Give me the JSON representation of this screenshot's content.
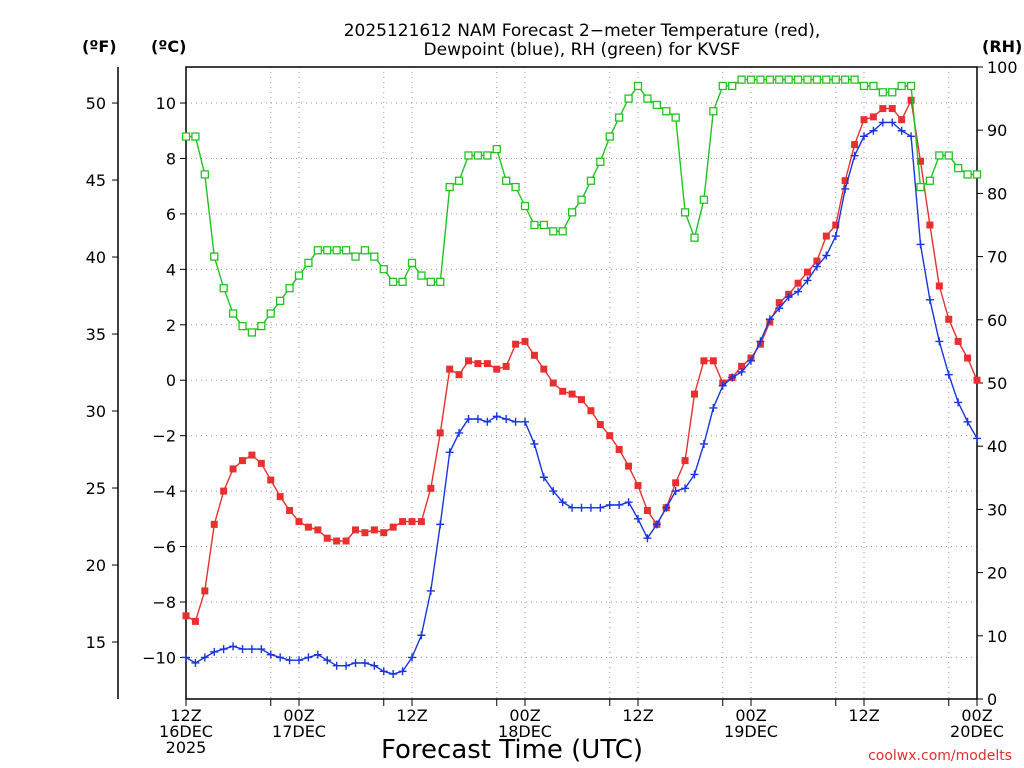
{
  "chart_data": {
    "type": "line",
    "title_lines": [
      "2025121612 NAM Forecast 2−meter Temperature (red),",
      "Dewpoint (blue), RH (green) for KVSF"
    ],
    "left_units_f": "(ºF)",
    "left_units_c": "(ºC)",
    "right_units": "(RH)",
    "xlabel": "Forecast Time (UTC)",
    "credit": "coolwx.com/modelts",
    "x_range_hours": [
      0,
      84
    ],
    "celsius_range": [
      -11.5,
      11.3
    ],
    "fahrenheit_ticks": [
      15,
      20,
      25,
      30,
      35,
      40,
      45,
      50
    ],
    "celsius_ticks": [
      -10,
      -8,
      -6,
      -4,
      -2,
      0,
      2,
      4,
      6,
      8,
      10
    ],
    "celsius_tick_labels": [
      "−10",
      "−8",
      "−6",
      "−4",
      "−2",
      "0",
      "2",
      "4",
      "6",
      "8",
      "10"
    ],
    "rh_range": [
      0,
      100
    ],
    "rh_ticks": [
      0,
      10,
      20,
      30,
      40,
      50,
      60,
      70,
      80,
      90,
      100
    ],
    "x_ticks": [
      {
        "hour": 0,
        "lines": [
          "12Z",
          "16DEC",
          "2025"
        ]
      },
      {
        "hour": 9,
        "lines": [
          ""
        ]
      },
      {
        "hour": 12,
        "lines": [
          "00Z",
          "17DEC"
        ]
      },
      {
        "hour": 21,
        "lines": [
          ""
        ]
      },
      {
        "hour": 24,
        "lines": [
          "12Z"
        ]
      },
      {
        "hour": 33,
        "lines": [
          ""
        ]
      },
      {
        "hour": 36,
        "lines": [
          "00Z",
          "18DEC"
        ]
      },
      {
        "hour": 45,
        "lines": [
          ""
        ]
      },
      {
        "hour": 48,
        "lines": [
          "12Z"
        ]
      },
      {
        "hour": 57,
        "lines": [
          ""
        ]
      },
      {
        "hour": 60,
        "lines": [
          "00Z",
          "19DEC"
        ]
      },
      {
        "hour": 69,
        "lines": [
          ""
        ]
      },
      {
        "hour": 72,
        "lines": [
          "12Z"
        ]
      },
      {
        "hour": 81,
        "lines": [
          ""
        ]
      },
      {
        "hour": 84,
        "lines": [
          "00Z",
          "20DEC"
        ]
      }
    ],
    "series": [
      {
        "name": "2-meter Temperature",
        "unit": "°C",
        "color": "#e83030",
        "marker": "filled-square",
        "points": [
          [
            0,
            -8.5
          ],
          [
            1,
            -8.7
          ],
          [
            2,
            -7.6
          ],
          [
            3,
            -5.2
          ],
          [
            4,
            -4.0
          ],
          [
            5,
            -3.2
          ],
          [
            6,
            -2.9
          ],
          [
            7,
            -2.7
          ],
          [
            8,
            -3.0
          ],
          [
            9,
            -3.6
          ],
          [
            10,
            -4.2
          ],
          [
            11,
            -4.7
          ],
          [
            12,
            -5.1
          ],
          [
            13,
            -5.3
          ],
          [
            14,
            -5.4
          ],
          [
            15,
            -5.7
          ],
          [
            16,
            -5.8
          ],
          [
            17,
            -5.8
          ],
          [
            18,
            -5.4
          ],
          [
            19,
            -5.5
          ],
          [
            20,
            -5.4
          ],
          [
            21,
            -5.5
          ],
          [
            22,
            -5.3
          ],
          [
            23,
            -5.1
          ],
          [
            24,
            -5.1
          ],
          [
            25,
            -5.1
          ],
          [
            26,
            -3.9
          ],
          [
            27,
            -1.9
          ],
          [
            28,
            0.4
          ],
          [
            29,
            0.2
          ],
          [
            30,
            0.7
          ],
          [
            31,
            0.6
          ],
          [
            32,
            0.6
          ],
          [
            33,
            0.4
          ],
          [
            34,
            0.5
          ],
          [
            35,
            1.3
          ],
          [
            36,
            1.4
          ],
          [
            37,
            0.9
          ],
          [
            38,
            0.4
          ],
          [
            39,
            -0.1
          ],
          [
            40,
            -0.4
          ],
          [
            41,
            -0.5
          ],
          [
            42,
            -0.7
          ],
          [
            43,
            -1.1
          ],
          [
            44,
            -1.6
          ],
          [
            45,
            -2.0
          ],
          [
            46,
            -2.5
          ],
          [
            47,
            -3.1
          ],
          [
            48,
            -3.8
          ],
          [
            49,
            -4.7
          ],
          [
            50,
            -5.2
          ],
          [
            51,
            -4.6
          ],
          [
            52,
            -3.7
          ],
          [
            53,
            -2.9
          ],
          [
            54,
            -0.5
          ],
          [
            55,
            0.7
          ],
          [
            56,
            0.7
          ],
          [
            57,
            -0.1
          ],
          [
            58,
            0.1
          ],
          [
            59,
            0.5
          ],
          [
            60,
            0.8
          ],
          [
            61,
            1.3
          ],
          [
            62,
            2.1
          ],
          [
            63,
            2.8
          ],
          [
            64,
            3.1
          ],
          [
            65,
            3.5
          ],
          [
            66,
            3.9
          ],
          [
            67,
            4.3
          ],
          [
            68,
            5.2
          ],
          [
            69,
            5.6
          ],
          [
            70,
            7.2
          ],
          [
            71,
            8.5
          ],
          [
            72,
            9.4
          ],
          [
            73,
            9.5
          ],
          [
            74,
            9.8
          ],
          [
            75,
            9.8
          ],
          [
            76,
            9.4
          ],
          [
            77,
            10.1
          ],
          [
            78,
            7.9
          ],
          [
            79,
            5.6
          ],
          [
            80,
            3.4
          ],
          [
            81,
            2.2
          ],
          [
            82,
            1.4
          ],
          [
            83,
            0.8
          ],
          [
            84,
            0.0
          ]
        ]
      },
      {
        "name": "Dewpoint",
        "unit": "°C",
        "color": "#1a35e0",
        "marker": "plus",
        "points": [
          [
            0,
            -10.0
          ],
          [
            1,
            -10.2
          ],
          [
            2,
            -10.0
          ],
          [
            3,
            -9.8
          ],
          [
            4,
            -9.7
          ],
          [
            5,
            -9.6
          ],
          [
            6,
            -9.7
          ],
          [
            7,
            -9.7
          ],
          [
            8,
            -9.7
          ],
          [
            9,
            -9.9
          ],
          [
            10,
            -10.0
          ],
          [
            11,
            -10.1
          ],
          [
            12,
            -10.1
          ],
          [
            13,
            -10.0
          ],
          [
            14,
            -9.9
          ],
          [
            15,
            -10.1
          ],
          [
            16,
            -10.3
          ],
          [
            17,
            -10.3
          ],
          [
            18,
            -10.2
          ],
          [
            19,
            -10.2
          ],
          [
            20,
            -10.3
          ],
          [
            21,
            -10.5
          ],
          [
            22,
            -10.6
          ],
          [
            23,
            -10.5
          ],
          [
            24,
            -10.0
          ],
          [
            25,
            -9.2
          ],
          [
            26,
            -7.6
          ],
          [
            27,
            -5.2
          ],
          [
            28,
            -2.6
          ],
          [
            29,
            -1.9
          ],
          [
            30,
            -1.4
          ],
          [
            31,
            -1.4
          ],
          [
            32,
            -1.5
          ],
          [
            33,
            -1.3
          ],
          [
            34,
            -1.4
          ],
          [
            35,
            -1.5
          ],
          [
            36,
            -1.5
          ],
          [
            37,
            -2.3
          ],
          [
            38,
            -3.5
          ],
          [
            39,
            -4.0
          ],
          [
            40,
            -4.4
          ],
          [
            41,
            -4.6
          ],
          [
            42,
            -4.6
          ],
          [
            43,
            -4.6
          ],
          [
            44,
            -4.6
          ],
          [
            45,
            -4.5
          ],
          [
            46,
            -4.5
          ],
          [
            47,
            -4.4
          ],
          [
            48,
            -5.0
          ],
          [
            49,
            -5.7
          ],
          [
            50,
            -5.2
          ],
          [
            51,
            -4.6
          ],
          [
            52,
            -4.0
          ],
          [
            53,
            -3.9
          ],
          [
            54,
            -3.4
          ],
          [
            55,
            -2.3
          ],
          [
            56,
            -1.0
          ],
          [
            57,
            -0.2
          ],
          [
            58,
            0.1
          ],
          [
            59,
            0.3
          ],
          [
            60,
            0.7
          ],
          [
            61,
            1.4
          ],
          [
            62,
            2.2
          ],
          [
            63,
            2.6
          ],
          [
            64,
            3.0
          ],
          [
            65,
            3.2
          ],
          [
            66,
            3.6
          ],
          [
            67,
            4.1
          ],
          [
            68,
            4.5
          ],
          [
            69,
            5.2
          ],
          [
            70,
            6.9
          ],
          [
            71,
            8.1
          ],
          [
            72,
            8.8
          ],
          [
            73,
            9.0
          ],
          [
            74,
            9.3
          ],
          [
            75,
            9.3
          ],
          [
            76,
            9.0
          ],
          [
            77,
            8.8
          ],
          [
            78,
            4.9
          ],
          [
            79,
            2.9
          ],
          [
            80,
            1.4
          ],
          [
            81,
            0.2
          ],
          [
            82,
            -0.8
          ],
          [
            83,
            -1.5
          ],
          [
            84,
            -2.1
          ]
        ]
      },
      {
        "name": "RH",
        "unit": "%",
        "color": "#1fc41f",
        "marker": "open-square",
        "points": [
          [
            0,
            89
          ],
          [
            1,
            89
          ],
          [
            2,
            83
          ],
          [
            3,
            70
          ],
          [
            4,
            65
          ],
          [
            5,
            61
          ],
          [
            6,
            59
          ],
          [
            7,
            58
          ],
          [
            8,
            59
          ],
          [
            9,
            61
          ],
          [
            10,
            63
          ],
          [
            11,
            65
          ],
          [
            12,
            67
          ],
          [
            13,
            69
          ],
          [
            14,
            71
          ],
          [
            15,
            71
          ],
          [
            16,
            71
          ],
          [
            17,
            71
          ],
          [
            18,
            70
          ],
          [
            19,
            71
          ],
          [
            20,
            70
          ],
          [
            21,
            68
          ],
          [
            22,
            66
          ],
          [
            23,
            66
          ],
          [
            24,
            69
          ],
          [
            25,
            67
          ],
          [
            26,
            66
          ],
          [
            27,
            66
          ],
          [
            28,
            81
          ],
          [
            29,
            82
          ],
          [
            30,
            86
          ],
          [
            31,
            86
          ],
          [
            32,
            86
          ],
          [
            33,
            87
          ],
          [
            34,
            82
          ],
          [
            35,
            81
          ],
          [
            36,
            78
          ],
          [
            37,
            75
          ],
          [
            38,
            75
          ],
          [
            39,
            74
          ],
          [
            40,
            74
          ],
          [
            41,
            77
          ],
          [
            42,
            79
          ],
          [
            43,
            82
          ],
          [
            44,
            85
          ],
          [
            45,
            89
          ],
          [
            46,
            92
          ],
          [
            47,
            95
          ],
          [
            48,
            97
          ],
          [
            49,
            95
          ],
          [
            50,
            94
          ],
          [
            51,
            93
          ],
          [
            52,
            92
          ],
          [
            53,
            77
          ],
          [
            54,
            73
          ],
          [
            55,
            79
          ],
          [
            56,
            93
          ],
          [
            57,
            97
          ],
          [
            58,
            97
          ],
          [
            59,
            98
          ],
          [
            60,
            98
          ],
          [
            61,
            98
          ],
          [
            62,
            98
          ],
          [
            63,
            98
          ],
          [
            64,
            98
          ],
          [
            65,
            98
          ],
          [
            66,
            98
          ],
          [
            67,
            98
          ],
          [
            68,
            98
          ],
          [
            69,
            98
          ],
          [
            70,
            98
          ],
          [
            71,
            98
          ],
          [
            72,
            97
          ],
          [
            73,
            97
          ],
          [
            74,
            96
          ],
          [
            75,
            96
          ],
          [
            76,
            97
          ],
          [
            77,
            97
          ],
          [
            78,
            81
          ],
          [
            79,
            82
          ],
          [
            80,
            86
          ],
          [
            81,
            86
          ],
          [
            82,
            84
          ],
          [
            83,
            83
          ],
          [
            84,
            83
          ]
        ]
      }
    ]
  }
}
